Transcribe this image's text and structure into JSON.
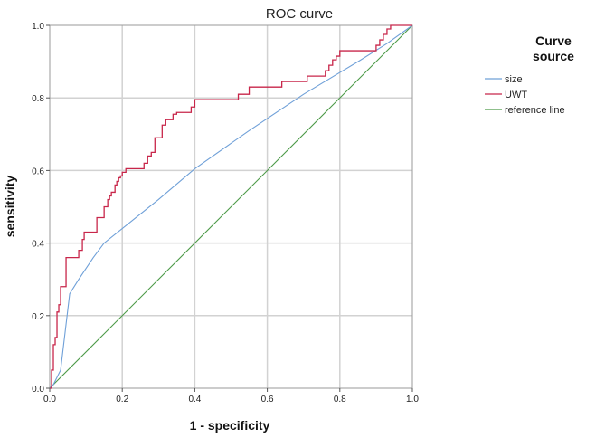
{
  "chart_data": {
    "type": "line",
    "title": "ROC  curve",
    "xlabel": "1 - specificity",
    "ylabel": "sensitivity",
    "xlim": [
      0,
      1
    ],
    "ylim": [
      0,
      1
    ],
    "xticks": [
      0.0,
      0.2,
      0.4,
      0.6,
      0.8,
      1.0
    ],
    "yticks": [
      0.0,
      0.2,
      0.4,
      0.6,
      0.8,
      1.0
    ],
    "xtick_labels": [
      "0.0",
      "0.2",
      "0.4",
      "0.6",
      "0.8",
      "1.0"
    ],
    "ytick_labels": [
      "0.0",
      "0.2",
      "0.4",
      "0.6",
      "0.8",
      "1.0"
    ],
    "grid": true,
    "legend": {
      "title_line1": "Curve",
      "title_line2": "source",
      "position": "right"
    },
    "series": [
      {
        "name": "size",
        "color": "#6fa0d8",
        "x": [
          0,
          0.01,
          0.03,
          0.055,
          0.08,
          0.12,
          0.15,
          0.2,
          0.3,
          0.4,
          0.55,
          0.7,
          0.85,
          0.93,
          1.0
        ],
        "y": [
          0,
          0.01,
          0.05,
          0.26,
          0.3,
          0.36,
          0.4,
          0.44,
          0.52,
          0.605,
          0.71,
          0.81,
          0.9,
          0.95,
          1.0
        ]
      },
      {
        "name": "UWT",
        "color": "#c8264a",
        "x": [
          0,
          0.005,
          0.005,
          0.01,
          0.01,
          0.015,
          0.015,
          0.02,
          0.02,
          0.025,
          0.025,
          0.03,
          0.03,
          0.045,
          0.045,
          0.08,
          0.08,
          0.09,
          0.09,
          0.095,
          0.095,
          0.13,
          0.13,
          0.15,
          0.15,
          0.16,
          0.16,
          0.165,
          0.165,
          0.17,
          0.17,
          0.18,
          0.18,
          0.185,
          0.185,
          0.19,
          0.19,
          0.195,
          0.195,
          0.2,
          0.2,
          0.21,
          0.21,
          0.22,
          0.22,
          0.23,
          0.23,
          0.26,
          0.26,
          0.27,
          0.27,
          0.28,
          0.28,
          0.29,
          0.29,
          0.3,
          0.3,
          0.31,
          0.31,
          0.32,
          0.32,
          0.33,
          0.33,
          0.34,
          0.34,
          0.35,
          0.35,
          0.36,
          0.36,
          0.37,
          0.37,
          0.39,
          0.39,
          0.4,
          0.4,
          0.52,
          0.52,
          0.55,
          0.55,
          0.62,
          0.62,
          0.63,
          0.63,
          0.64,
          0.64,
          0.65,
          0.65,
          0.66,
          0.66,
          0.71,
          0.71,
          0.72,
          0.72,
          0.76,
          0.76,
          0.77,
          0.77,
          0.78,
          0.78,
          0.79,
          0.79,
          0.8,
          0.8,
          0.81,
          0.81,
          0.9,
          0.9,
          0.91,
          0.91,
          0.92,
          0.92,
          0.93,
          0.93,
          0.94,
          0.94,
          1.0
        ],
        "y": [
          0,
          0,
          0.05,
          0.05,
          0.12,
          0.12,
          0.14,
          0.14,
          0.21,
          0.21,
          0.23,
          0.23,
          0.28,
          0.28,
          0.36,
          0.36,
          0.38,
          0.38,
          0.41,
          0.41,
          0.43,
          0.43,
          0.47,
          0.47,
          0.5,
          0.5,
          0.52,
          0.52,
          0.53,
          0.53,
          0.54,
          0.54,
          0.56,
          0.56,
          0.57,
          0.57,
          0.58,
          0.58,
          0.585,
          0.585,
          0.595,
          0.595,
          0.605,
          0.605,
          0.605,
          0.605,
          0.605,
          0.605,
          0.62,
          0.62,
          0.64,
          0.64,
          0.65,
          0.65,
          0.69,
          0.69,
          0.69,
          0.69,
          0.725,
          0.725,
          0.74,
          0.74,
          0.74,
          0.74,
          0.755,
          0.755,
          0.76,
          0.76,
          0.76,
          0.76,
          0.76,
          0.76,
          0.775,
          0.775,
          0.795,
          0.795,
          0.81,
          0.81,
          0.83,
          0.83,
          0.83,
          0.83,
          0.83,
          0.83,
          0.845,
          0.845,
          0.845,
          0.845,
          0.845,
          0.845,
          0.86,
          0.86,
          0.86,
          0.86,
          0.875,
          0.875,
          0.89,
          0.89,
          0.905,
          0.905,
          0.915,
          0.915,
          0.93,
          0.93,
          0.93,
          0.93,
          0.945,
          0.945,
          0.96,
          0.96,
          0.975,
          0.975,
          0.99,
          0.99,
          1.0,
          1.0
        ]
      },
      {
        "name": "reference line",
        "color": "#4c9a47",
        "x": [
          0,
          1
        ],
        "y": [
          0,
          1
        ]
      }
    ]
  }
}
